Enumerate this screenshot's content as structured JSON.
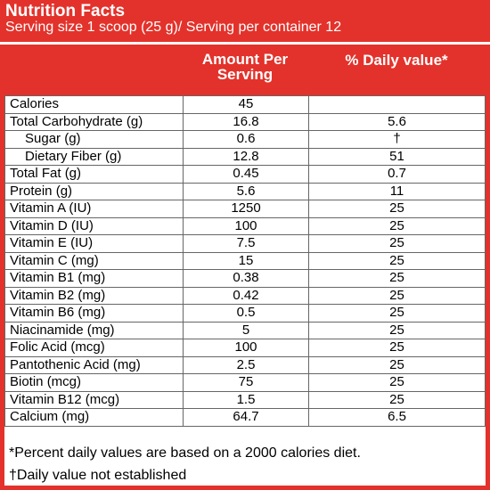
{
  "header": {
    "title": "Nutrition Facts",
    "subtitle": "Serving size 1 scoop (25 g)/ Serving per container 12"
  },
  "table": {
    "columns": [
      "Amount Per Serving",
      "% Daily value*"
    ],
    "rows": [
      [
        "Calories",
        "45",
        null
      ],
      [
        "Total Carbohydrate (g)",
        "16.8",
        "5.6"
      ],
      [
        "Sugar (g)",
        "0.6",
        "†"
      ],
      [
        "Dietary Fiber (g)",
        "12.8",
        "51"
      ],
      [
        "Total Fat (g)",
        "0.45",
        "0.7"
      ],
      [
        "Protein (g)",
        "5.6",
        "11"
      ],
      [
        "Vitamin A (IU)",
        "1250",
        "25"
      ],
      [
        "Vitamin D (IU)",
        "100",
        "25"
      ],
      [
        "Vitamin E (IU)",
        "7.5",
        "25"
      ],
      [
        "Vitamin C (mg)",
        "15",
        "25"
      ],
      [
        "Vitamin B1 (mg)",
        "0.38",
        "25"
      ],
      [
        "Vitamin B2 (mg)",
        "0.42",
        "25"
      ],
      [
        "Vitamin B6 (mg)",
        "0.5",
        "25"
      ],
      [
        "Niacinamide (mg)",
        "5",
        "25"
      ],
      [
        "Folic Acid (mcg)",
        "100",
        "25"
      ],
      [
        "Pantothenic Acid (mg)",
        "2.5",
        "25"
      ],
      [
        "Biotin (mcg)",
        "75",
        "25"
      ],
      [
        "Vitamin B12 (mcg)",
        "1.5",
        "25"
      ],
      [
        "Calcium (mg)",
        "64.7",
        "6.5"
      ]
    ]
  },
  "footnotes": [
    "*Percent daily values are based on a 2000 calories diet.",
    "†Daily value not established"
  ]
}
